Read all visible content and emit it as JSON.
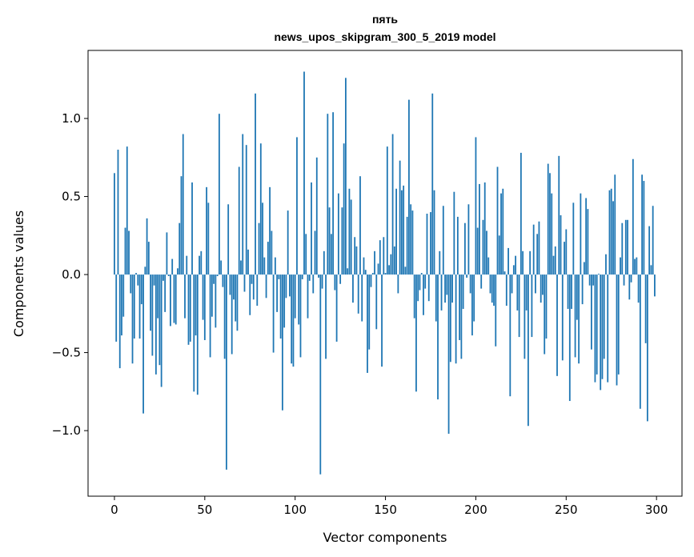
{
  "chart_data": {
    "type": "bar",
    "title_line1": "пять",
    "title_line2": "news_upos_skipgram_300_5_2019 model",
    "xlabel": "Vector components",
    "ylabel": "Components values",
    "xlim": [
      -14.6,
      314.1
    ],
    "ylim": [
      -1.42,
      1.436
    ],
    "xticks": [
      0,
      50,
      100,
      150,
      200,
      250,
      300
    ],
    "xtick_labels": [
      "0",
      "50",
      "100",
      "150",
      "200",
      "250",
      "300"
    ],
    "yticks": [
      -1.0,
      -0.5,
      0.0,
      0.5,
      1.0
    ],
    "ytick_labels": [
      "−1.0",
      "−0.5",
      "0.0",
      "0.5",
      "1.0"
    ],
    "grid": false,
    "bar_color": "#1f77b4",
    "values": [
      0.65,
      -0.43,
      0.8,
      -0.6,
      -0.39,
      -0.27,
      0.3,
      0.82,
      0.28,
      -0.12,
      -0.57,
      -0.41,
      0.01,
      -0.07,
      -0.41,
      -0.19,
      -0.89,
      0.05,
      0.36,
      0.21,
      -0.36,
      -0.52,
      -0.07,
      -0.64,
      -0.28,
      -0.58,
      -0.72,
      -0.04,
      -0.24,
      0.27,
      -0.01,
      -0.33,
      0.1,
      -0.31,
      -0.32,
      0.04,
      0.33,
      0.63,
      0.9,
      -0.28,
      0.12,
      -0.45,
      -0.43,
      0.59,
      -0.75,
      -0.39,
      -0.77,
      0.12,
      0.15,
      -0.29,
      -0.42,
      0.56,
      0.46,
      -0.53,
      -0.27,
      -0.06,
      -0.34,
      -0.01,
      1.03,
      0.09,
      -0.08,
      -0.54,
      -1.25,
      0.45,
      -0.13,
      -0.51,
      -0.16,
      -0.3,
      -0.36,
      0.69,
      0.09,
      0.9,
      -0.11,
      0.83,
      0.16,
      -0.26,
      -0.06,
      -0.16,
      1.16,
      -0.2,
      0.33,
      0.84,
      0.46,
      0.11,
      -0.15,
      0.21,
      0.56,
      0.28,
      -0.5,
      0.11,
      -0.24,
      -0.03,
      -0.41,
      -0.87,
      -0.34,
      -0.15,
      0.41,
      -0.14,
      -0.57,
      -0.59,
      -0.28,
      0.88,
      -0.32,
      -0.53,
      -0.03,
      1.3,
      0.26,
      -0.28,
      -0.04,
      0.59,
      -0.12,
      0.28,
      0.75,
      -0.02,
      -1.28,
      -0.09,
      0.15,
      -0.54,
      1.03,
      0.43,
      0.26,
      1.04,
      -0.1,
      -0.43,
      0.52,
      -0.06,
      0.43,
      0.84,
      1.26,
      0.04,
      0.55,
      0.48,
      -0.18,
      0.24,
      0.18,
      -0.25,
      0.63,
      -0.3,
      0.11,
      0.03,
      -0.63,
      -0.48,
      -0.08,
      0.01,
      0.15,
      -0.35,
      0.07,
      0.22,
      -0.59,
      0.24,
      0.01,
      0.82,
      0.06,
      0.13,
      0.9,
      0.18,
      0.55,
      -0.12,
      0.73,
      0.54,
      0.57,
      0.05,
      0.37,
      1.12,
      0.45,
      0.41,
      -0.28,
      -0.75,
      -0.17,
      -0.1,
      0.01,
      -0.26,
      -0.09,
      0.39,
      -0.17,
      0.4,
      1.16,
      0.54,
      -0.3,
      -0.8,
      0.15,
      -0.23,
      0.44,
      -0.18,
      -0.13,
      -1.02,
      -0.56,
      -0.18,
      0.53,
      -0.57,
      0.37,
      -0.42,
      -0.54,
      -0.22,
      0.33,
      -0.02,
      0.45,
      -0.12,
      -0.39,
      -0.3,
      0.88,
      0.3,
      0.58,
      -0.09,
      0.35,
      0.59,
      0.28,
      0.11,
      -0.12,
      -0.18,
      -0.2,
      -0.46,
      0.69,
      0.25,
      0.52,
      0.55,
      0.02,
      -0.2,
      0.17,
      -0.78,
      -0.12,
      0.06,
      0.12,
      -0.23,
      -0.4,
      0.78,
      0.15,
      -0.54,
      -0.23,
      -0.97,
      0.15,
      -0.4,
      0.32,
      -0.12,
      0.26,
      0.34,
      -0.18,
      -0.13,
      -0.51,
      -0.41,
      0.71,
      0.65,
      0.52,
      0.12,
      0.18,
      -0.65,
      0.76,
      0.38,
      -0.55,
      0.21,
      0.29,
      -0.22,
      -0.81,
      -0.22,
      0.46,
      -0.53,
      -0.29,
      -0.57,
      0.52,
      -0.19,
      0.08,
      0.49,
      0.42,
      -0.07,
      -0.48,
      -0.07,
      -0.69,
      -0.64,
      0.005,
      -0.74,
      -0.67,
      -0.54,
      0.13,
      -0.69,
      0.54,
      0.55,
      0.47,
      0.64,
      -0.71,
      -0.64,
      0.11,
      0.33,
      -0.07,
      0.35,
      0.35,
      -0.16,
      -0.05,
      0.74,
      0.1,
      0.11,
      -0.18,
      -0.86,
      0.64,
      0.6,
      -0.44,
      -0.94,
      0.31,
      0.06,
      0.44,
      -0.14
    ]
  }
}
